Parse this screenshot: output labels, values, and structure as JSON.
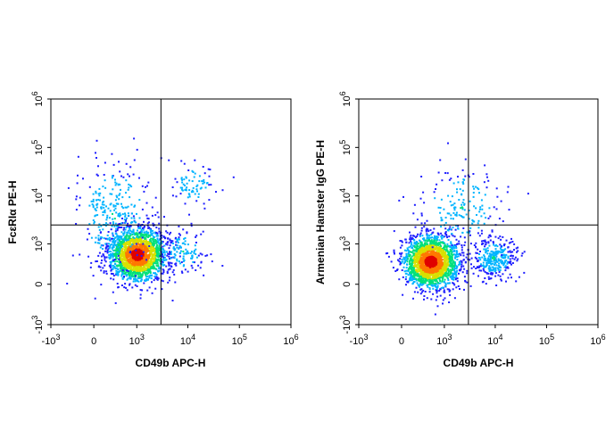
{
  "chart_data": [
    {
      "type": "scatter",
      "subtype": "flow-cytometry-density-dot-plot",
      "title": "",
      "xlabel": "CD49b APC-H",
      "ylabel": "FcεRIα PE-H",
      "x_scale": "biexponential",
      "y_scale": "biexponential",
      "x_ticks": [
        "-10^3",
        "0",
        "10^3",
        "10^4",
        "10^5",
        "10^6"
      ],
      "y_ticks": [
        "-10^3",
        "0",
        "10^3",
        "10^4",
        "10^5",
        "10^6"
      ],
      "xlim": [
        -1000,
        1000000
      ],
      "ylim": [
        -1000,
        1000000
      ],
      "gate": {
        "x": 3000,
        "y": 2500
      },
      "populations": [
        {
          "name": "main",
          "center": [
            1000,
            600
          ],
          "spread": "high",
          "relative_count": 0.8
        },
        {
          "name": "upper-left tail",
          "center": [
            300,
            4000
          ],
          "spread": "wide",
          "relative_count": 0.12
        },
        {
          "name": "upper-right",
          "center": [
            12000,
            18000
          ],
          "spread": "medium",
          "relative_count": 0.03
        },
        {
          "name": "lower-right",
          "center": [
            8000,
            700
          ],
          "spread": "medium",
          "relative_count": 0.05
        }
      ],
      "colormap": [
        "#1f1fff",
        "#00b4ff",
        "#00e07a",
        "#d8e000",
        "#ff7800",
        "#e00000"
      ]
    },
    {
      "type": "scatter",
      "subtype": "flow-cytometry-density-dot-plot",
      "title": "",
      "xlabel": "CD49b APC-H",
      "ylabel": "Armenian Hamster IgG PE-H",
      "x_scale": "biexponential",
      "y_scale": "biexponential",
      "x_ticks": [
        "-10^3",
        "0",
        "10^3",
        "10^4",
        "10^5",
        "10^6"
      ],
      "y_ticks": [
        "-10^3",
        "0",
        "10^3",
        "10^4",
        "10^5",
        "10^6"
      ],
      "xlim": [
        -1000,
        1000000
      ],
      "ylim": [
        -1000,
        1000000
      ],
      "gate": {
        "x": 3000,
        "y": 2500
      },
      "populations": [
        {
          "name": "main",
          "center": [
            500,
            400
          ],
          "spread": "high",
          "relative_count": 0.8
        },
        {
          "name": "lower-right",
          "center": [
            9000,
            500
          ],
          "spread": "medium",
          "relative_count": 0.13
        },
        {
          "name": "upper sparse",
          "center": [
            2000,
            6000
          ],
          "spread": "wide",
          "relative_count": 0.07
        }
      ],
      "colormap": [
        "#1f1fff",
        "#00b4ff",
        "#00e07a",
        "#d8e000",
        "#ff7800",
        "#e00000"
      ]
    }
  ]
}
